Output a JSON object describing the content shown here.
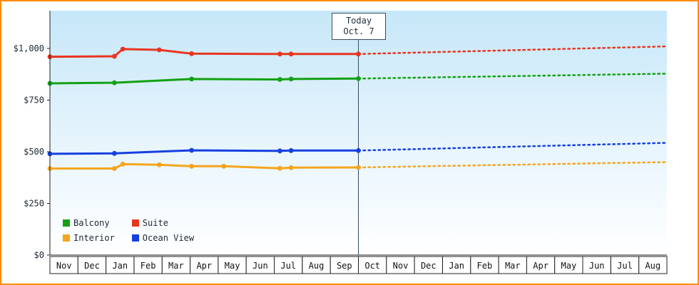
{
  "window": {
    "border_color": "#ff8a00",
    "background": "#ffffff"
  },
  "chart_data": {
    "type": "line",
    "title": "",
    "xlabel": "",
    "ylabel": "",
    "ylim": [
      0,
      1180
    ],
    "grid": false,
    "legend_position": "bottom-left-inside",
    "plot_background": {
      "top": "#c6e7f8",
      "mid": "#eaf6fd",
      "bottom": "#ffffff"
    },
    "y_ticks": [
      {
        "label": "$0",
        "value": 0
      },
      {
        "label": "$250",
        "value": 250
      },
      {
        "label": "$500",
        "value": 500
      },
      {
        "label": "$750",
        "value": 750
      },
      {
        "label": "$1,000",
        "value": 1000
      }
    ],
    "x_months": [
      "Nov",
      "Dec",
      "Jan",
      "Feb",
      "Mar",
      "Apr",
      "May",
      "Jun",
      "Jul",
      "Aug",
      "Sep",
      "Oct",
      "Nov",
      "Dec",
      "Jan",
      "Feb",
      "Mar",
      "Apr",
      "May",
      "Jun",
      "Jul",
      "Aug"
    ],
    "today_index": 11,
    "today_label": {
      "line1": "Today",
      "line2": "Oct. 7"
    },
    "today_line_color": "#3b4a63",
    "series": [
      {
        "name": "Balcony",
        "color": "#13a113",
        "history": [
          [
            0,
            831
          ],
          [
            2.3,
            834
          ],
          [
            5.05,
            852
          ],
          [
            8.2,
            850
          ],
          [
            8.6,
            852
          ],
          [
            11,
            854
          ]
        ],
        "forecast": [
          [
            11,
            854
          ],
          [
            22,
            878
          ]
        ]
      },
      {
        "name": "Suite",
        "color": "#e8351f",
        "history": [
          [
            0,
            960
          ],
          [
            2.3,
            962
          ],
          [
            2.6,
            997
          ],
          [
            3.9,
            993
          ],
          [
            5.05,
            975
          ],
          [
            8.2,
            973
          ],
          [
            8.6,
            973
          ],
          [
            11,
            973
          ]
        ],
        "forecast": [
          [
            11,
            973
          ],
          [
            22,
            1010
          ]
        ]
      },
      {
        "name": "Interior",
        "color": "#f5a51d",
        "history": [
          [
            0,
            419
          ],
          [
            2.3,
            419
          ],
          [
            2.6,
            440
          ],
          [
            3.9,
            437
          ],
          [
            5.05,
            430
          ],
          [
            6.2,
            430
          ],
          [
            8.2,
            420
          ],
          [
            8.6,
            423
          ],
          [
            11,
            424
          ]
        ],
        "forecast": [
          [
            11,
            424
          ],
          [
            22,
            450
          ]
        ]
      },
      {
        "name": "Ocean View",
        "color": "#1540e0",
        "history": [
          [
            0,
            490
          ],
          [
            2.3,
            492
          ],
          [
            5.05,
            507
          ],
          [
            8.2,
            504
          ],
          [
            8.6,
            506
          ],
          [
            11,
            506
          ]
        ],
        "forecast": [
          [
            11,
            506
          ],
          [
            22,
            543
          ]
        ]
      }
    ]
  }
}
